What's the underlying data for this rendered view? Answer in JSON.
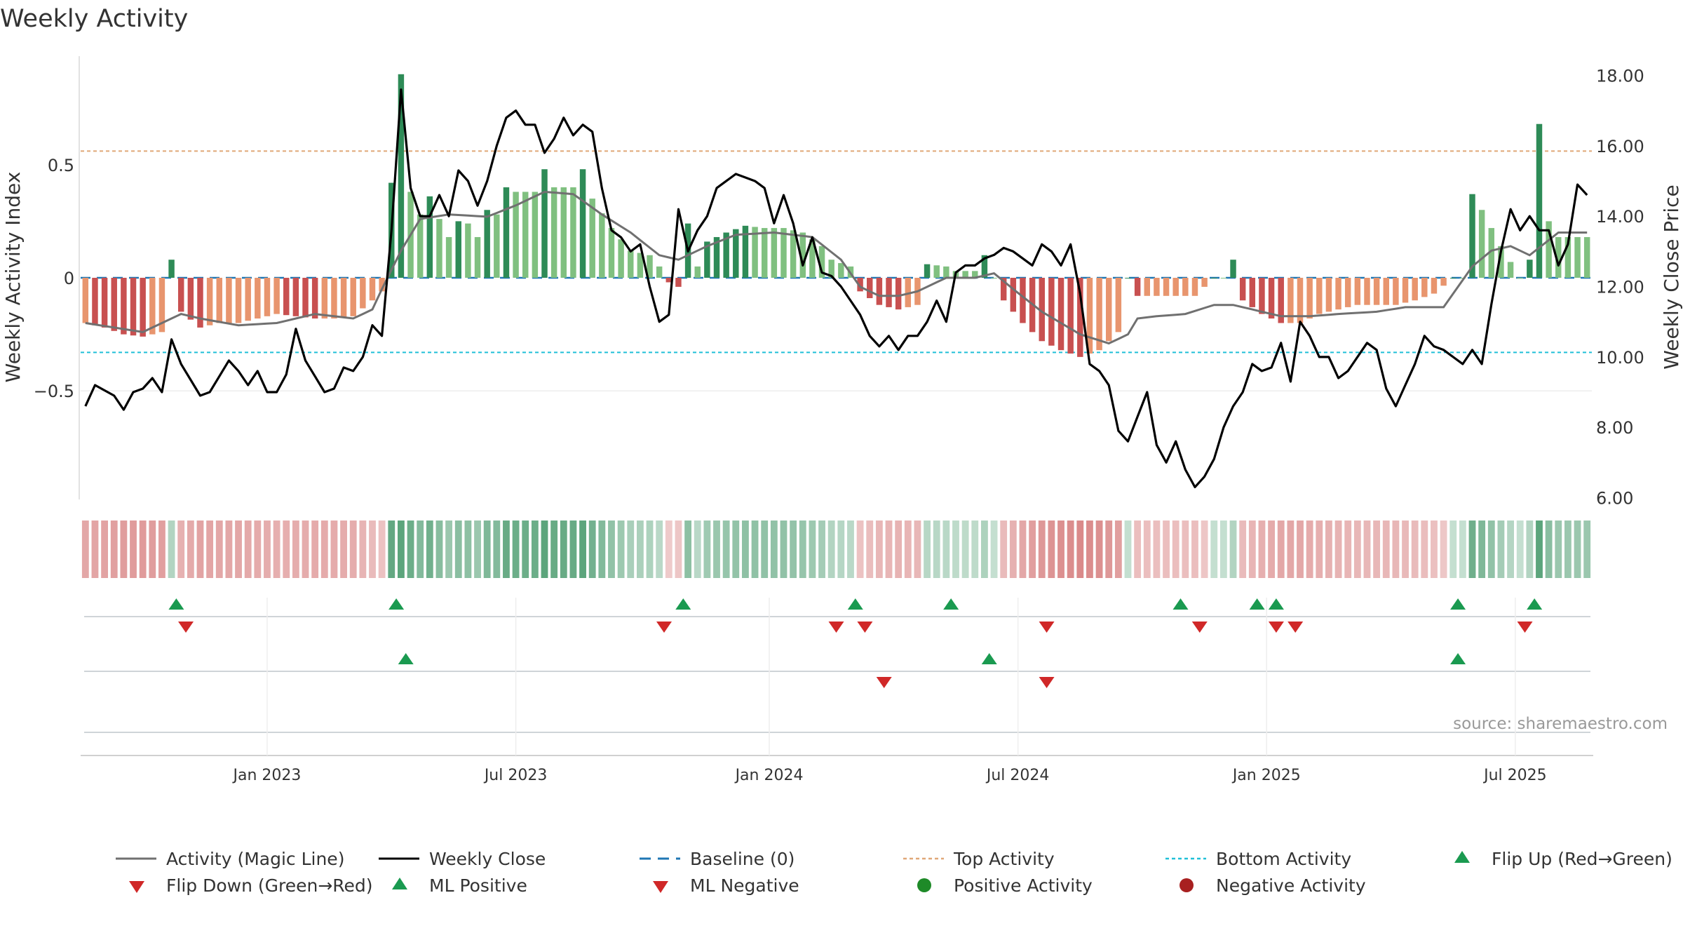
{
  "chart_data": {
    "type": "bar",
    "title": "Weekly Activity",
    "ylabel": "Weekly Activity Index",
    "y2label": "Weekly Close Price",
    "ylim": [
      -0.98,
      0.98
    ],
    "y2lim": [
      5.95,
      18.55
    ],
    "yticks": [
      {
        "value": 0.5,
        "label": "0.5"
      },
      {
        "value": 0,
        "label": "0"
      },
      {
        "value": -0.5,
        "label": "−0.5"
      }
    ],
    "y2ticks": [
      {
        "value": 18,
        "label": "18.00"
      },
      {
        "value": 16,
        "label": "16.00"
      },
      {
        "value": 14,
        "label": "14.00"
      },
      {
        "value": 12,
        "label": "12.00"
      },
      {
        "value": 10,
        "label": "10.00"
      },
      {
        "value": 8,
        "label": "8.00"
      },
      {
        "value": 6,
        "label": "6.00"
      }
    ],
    "xticks": [
      {
        "week": 19,
        "label": "Jan 2023"
      },
      {
        "week": 45,
        "label": "Jul 2023"
      },
      {
        "week": 71.5,
        "label": "Jan 2024"
      },
      {
        "week": 97.5,
        "label": "Jul 2024"
      },
      {
        "week": 123.5,
        "label": "Jan 2025"
      },
      {
        "week": 149.5,
        "label": "Jul 2025"
      }
    ],
    "top_activity": 0.56,
    "bottom_activity": -0.33,
    "source": "source: sharemaestro.com",
    "weeks": 158,
    "anchors": {
      "activity": [
        [
          0,
          -0.2
        ],
        [
          2,
          -0.22
        ],
        [
          4,
          -0.25
        ],
        [
          6,
          -0.26
        ],
        [
          8,
          -0.24
        ],
        [
          9,
          0.08
        ],
        [
          10,
          -0.15
        ],
        [
          12,
          -0.22
        ],
        [
          14,
          -0.2
        ],
        [
          16,
          -0.2
        ],
        [
          18,
          -0.18
        ],
        [
          20,
          -0.16
        ],
        [
          22,
          -0.17
        ],
        [
          24,
          -0.18
        ],
        [
          26,
          -0.18
        ],
        [
          28,
          -0.17
        ],
        [
          30,
          -0.1
        ],
        [
          31,
          -0.06
        ],
        [
          32,
          0.42
        ],
        [
          33,
          0.9
        ],
        [
          34,
          0.38
        ],
        [
          35,
          0.28
        ],
        [
          36,
          0.36
        ],
        [
          37,
          0.26
        ],
        [
          38,
          0.18
        ],
        [
          39,
          0.25
        ],
        [
          40,
          0.24
        ],
        [
          41,
          0.18
        ],
        [
          42,
          0.3
        ],
        [
          43,
          0.28
        ],
        [
          44,
          0.4
        ],
        [
          45,
          0.38
        ],
        [
          47,
          0.38
        ],
        [
          48,
          0.48
        ],
        [
          49,
          0.4
        ],
        [
          51,
          0.4
        ],
        [
          52,
          0.48
        ],
        [
          53,
          0.35
        ],
        [
          55,
          0.22
        ],
        [
          57,
          0.12
        ],
        [
          59,
          0.1
        ],
        [
          60,
          0.05
        ],
        [
          61,
          -0.02
        ],
        [
          62,
          -0.04
        ],
        [
          63,
          0.24
        ],
        [
          64,
          0.05
        ],
        [
          65,
          0.16
        ],
        [
          67,
          0.2
        ],
        [
          69,
          0.23
        ],
        [
          71,
          0.22
        ],
        [
          73,
          0.22
        ],
        [
          75,
          0.2
        ],
        [
          77,
          0.14
        ],
        [
          78,
          0.08
        ],
        [
          80,
          0.05
        ],
        [
          81,
          -0.06
        ],
        [
          83,
          -0.12
        ],
        [
          85,
          -0.14
        ],
        [
          87,
          -0.12
        ],
        [
          88,
          0.06
        ],
        [
          90,
          0.05
        ],
        [
          91,
          0.03
        ],
        [
          93,
          0.03
        ],
        [
          94,
          0.1
        ],
        [
          95,
          0.0
        ],
        [
          96,
          -0.1
        ],
        [
          98,
          -0.2
        ],
        [
          100,
          -0.28
        ],
        [
          102,
          -0.32
        ],
        [
          104,
          -0.35
        ],
        [
          106,
          -0.32
        ],
        [
          108,
          -0.24
        ],
        [
          109,
          0.0
        ],
        [
          110,
          -0.08
        ],
        [
          112,
          -0.08
        ],
        [
          114,
          -0.08
        ],
        [
          116,
          -0.08
        ],
        [
          118,
          0.0
        ],
        [
          119,
          0.0
        ],
        [
          120,
          0.08
        ],
        [
          121,
          -0.1
        ],
        [
          123,
          -0.16
        ],
        [
          125,
          -0.2
        ],
        [
          127,
          -0.2
        ],
        [
          129,
          -0.16
        ],
        [
          131,
          -0.14
        ],
        [
          133,
          -0.12
        ],
        [
          135,
          -0.12
        ],
        [
          137,
          -0.12
        ],
        [
          139,
          -0.1
        ],
        [
          141,
          -0.07
        ],
        [
          143,
          0.0
        ],
        [
          144,
          0.0
        ],
        [
          145,
          0.37
        ],
        [
          146,
          0.3
        ],
        [
          148,
          0.14
        ],
        [
          150,
          0.0
        ],
        [
          151,
          0.08
        ],
        [
          152,
          0.68
        ],
        [
          153,
          0.25
        ],
        [
          154,
          0.18
        ]
      ],
      "magic_line": [
        [
          0,
          -0.2
        ],
        [
          6,
          -0.24
        ],
        [
          8,
          -0.2
        ],
        [
          10,
          -0.16
        ],
        [
          12,
          -0.18
        ],
        [
          16,
          -0.21
        ],
        [
          20,
          -0.2
        ],
        [
          24,
          -0.16
        ],
        [
          28,
          -0.18
        ],
        [
          30,
          -0.14
        ],
        [
          31,
          -0.05
        ],
        [
          33,
          0.12
        ],
        [
          35,
          0.26
        ],
        [
          38,
          0.28
        ],
        [
          42,
          0.27
        ],
        [
          45,
          0.32
        ],
        [
          48,
          0.38
        ],
        [
          51,
          0.37
        ],
        [
          54,
          0.28
        ],
        [
          57,
          0.2
        ],
        [
          60,
          0.1
        ],
        [
          62,
          0.08
        ],
        [
          65,
          0.14
        ],
        [
          68,
          0.19
        ],
        [
          72,
          0.2
        ],
        [
          76,
          0.18
        ],
        [
          79,
          0.08
        ],
        [
          81,
          -0.04
        ],
        [
          83,
          -0.08
        ],
        [
          85,
          -0.08
        ],
        [
          87,
          -0.06
        ],
        [
          90,
          0.0
        ],
        [
          93,
          0.0
        ],
        [
          95,
          0.02
        ],
        [
          97,
          -0.05
        ],
        [
          100,
          -0.15
        ],
        [
          104,
          -0.25
        ],
        [
          107,
          -0.29
        ],
        [
          109,
          -0.25
        ],
        [
          110,
          -0.18
        ],
        [
          112,
          -0.17
        ],
        [
          115,
          -0.16
        ],
        [
          118,
          -0.12
        ],
        [
          120,
          -0.12
        ],
        [
          122,
          -0.14
        ],
        [
          125,
          -0.17
        ],
        [
          128,
          -0.17
        ],
        [
          131,
          -0.16
        ],
        [
          135,
          -0.15
        ],
        [
          138,
          -0.13
        ],
        [
          142,
          -0.13
        ],
        [
          145,
          0.05
        ],
        [
          147,
          0.12
        ],
        [
          149,
          0.14
        ],
        [
          151,
          0.1
        ],
        [
          154,
          0.2
        ]
      ],
      "close": [
        [
          0,
          8.6
        ],
        [
          1,
          9.2
        ],
        [
          3,
          8.9
        ],
        [
          4,
          8.5
        ],
        [
          5,
          9.0
        ],
        [
          6,
          9.1
        ],
        [
          7,
          9.4
        ],
        [
          8,
          9.0
        ],
        [
          9,
          10.5
        ],
        [
          10,
          9.8
        ],
        [
          12,
          8.9
        ],
        [
          13,
          9.0
        ],
        [
          15,
          9.9
        ],
        [
          16,
          9.6
        ],
        [
          17,
          9.2
        ],
        [
          18,
          9.6
        ],
        [
          19,
          9.0
        ],
        [
          20,
          9.0
        ],
        [
          21,
          9.5
        ],
        [
          22,
          10.8
        ],
        [
          23,
          9.9
        ],
        [
          25,
          9.0
        ],
        [
          26,
          9.1
        ],
        [
          27,
          9.7
        ],
        [
          28,
          9.6
        ],
        [
          29,
          10.0
        ],
        [
          30,
          10.9
        ],
        [
          31,
          10.6
        ],
        [
          32,
          13.6
        ],
        [
          33,
          17.6
        ],
        [
          34,
          14.8
        ],
        [
          35,
          14.0
        ],
        [
          36,
          14.0
        ],
        [
          37,
          14.6
        ],
        [
          38,
          14.0
        ],
        [
          39,
          15.3
        ],
        [
          40,
          15.0
        ],
        [
          41,
          14.3
        ],
        [
          42,
          15.0
        ],
        [
          43,
          16.0
        ],
        [
          44,
          16.8
        ],
        [
          45,
          17.0
        ],
        [
          46,
          16.6
        ],
        [
          47,
          16.6
        ],
        [
          48,
          15.8
        ],
        [
          49,
          16.2
        ],
        [
          50,
          16.8
        ],
        [
          51,
          16.3
        ],
        [
          52,
          16.6
        ],
        [
          53,
          16.4
        ],
        [
          54,
          14.8
        ],
        [
          55,
          13.6
        ],
        [
          56,
          13.4
        ],
        [
          57,
          13.0
        ],
        [
          58,
          13.2
        ],
        [
          59,
          12.0
        ],
        [
          60,
          11.0
        ],
        [
          61,
          11.2
        ],
        [
          62,
          14.2
        ],
        [
          63,
          13.0
        ],
        [
          64,
          13.6
        ],
        [
          65,
          14.0
        ],
        [
          66,
          14.8
        ],
        [
          67,
          15.0
        ],
        [
          68,
          15.2
        ],
        [
          69,
          15.1
        ],
        [
          70,
          15.0
        ],
        [
          71,
          14.8
        ],
        [
          72,
          13.8
        ],
        [
          73,
          14.6
        ],
        [
          74,
          13.8
        ],
        [
          75,
          12.6
        ],
        [
          76,
          13.4
        ],
        [
          77,
          12.4
        ],
        [
          78,
          12.3
        ],
        [
          79,
          12.0
        ],
        [
          80,
          11.6
        ],
        [
          81,
          11.2
        ],
        [
          82,
          10.6
        ],
        [
          83,
          10.3
        ],
        [
          84,
          10.6
        ],
        [
          85,
          10.2
        ],
        [
          86,
          10.6
        ],
        [
          87,
          10.6
        ],
        [
          88,
          11.0
        ],
        [
          89,
          11.6
        ],
        [
          90,
          11.0
        ],
        [
          91,
          12.4
        ],
        [
          92,
          12.6
        ],
        [
          93,
          12.6
        ],
        [
          94,
          12.8
        ],
        [
          95,
          12.9
        ],
        [
          96,
          13.1
        ],
        [
          97,
          13.0
        ],
        [
          98,
          12.8
        ],
        [
          99,
          12.6
        ],
        [
          100,
          13.2
        ],
        [
          101,
          13.0
        ],
        [
          102,
          12.6
        ],
        [
          103,
          13.2
        ],
        [
          104,
          11.8
        ],
        [
          105,
          9.8
        ],
        [
          106,
          9.6
        ],
        [
          107,
          9.2
        ],
        [
          108,
          7.9
        ],
        [
          109,
          7.6
        ],
        [
          110,
          8.3
        ],
        [
          111,
          9.0
        ],
        [
          112,
          7.5
        ],
        [
          113,
          7.0
        ],
        [
          114,
          7.6
        ],
        [
          115,
          6.8
        ],
        [
          116,
          6.3
        ],
        [
          117,
          6.6
        ],
        [
          118,
          7.1
        ],
        [
          119,
          8.0
        ],
        [
          120,
          8.6
        ],
        [
          121,
          9.0
        ],
        [
          122,
          9.8
        ],
        [
          123,
          9.6
        ],
        [
          124,
          9.7
        ],
        [
          125,
          10.4
        ],
        [
          126,
          9.3
        ],
        [
          127,
          11.0
        ],
        [
          128,
          10.6
        ],
        [
          129,
          10.0
        ],
        [
          130,
          10.0
        ],
        [
          131,
          9.4
        ],
        [
          132,
          9.6
        ],
        [
          133,
          10.0
        ],
        [
          134,
          10.4
        ],
        [
          135,
          10.2
        ],
        [
          136,
          9.1
        ],
        [
          137,
          8.6
        ],
        [
          138,
          9.2
        ],
        [
          139,
          9.8
        ],
        [
          140,
          10.6
        ],
        [
          141,
          10.3
        ],
        [
          142,
          10.2
        ],
        [
          143,
          10.0
        ],
        [
          144,
          9.8
        ],
        [
          145,
          10.2
        ],
        [
          146,
          9.8
        ],
        [
          147,
          11.5
        ],
        [
          148,
          13.0
        ],
        [
          149,
          14.2
        ],
        [
          150,
          13.6
        ],
        [
          151,
          14.0
        ],
        [
          152,
          13.6
        ],
        [
          153,
          13.6
        ],
        [
          154,
          12.6
        ],
        [
          155,
          13.2
        ],
        [
          156,
          14.9
        ],
        [
          157,
          14.6
        ]
      ]
    },
    "colors": {
      "pos_dark": "#2e8b57",
      "pos_light": "#80c080",
      "neg_dark": "#c85050",
      "neg_light": "#e8956e",
      "magic_line": "#707070",
      "close": "#000000",
      "baseline": "#1f77b4",
      "top": "#e0a878",
      "bottom": "#20c0d8",
      "flip_up": "#1a9a50",
      "flip_down": "#d02828"
    },
    "signals": {
      "row1_up": [
        9.5,
        32.5,
        62.5,
        80.5,
        90.5,
        114.5,
        122.5,
        124.5,
        143.5,
        151.5
      ],
      "row1_down": [
        10.5,
        60.5,
        78.5,
        81.5,
        100.5,
        116.5,
        124.5,
        126.5,
        150.5
      ],
      "row2_up": [
        33.5,
        94.5,
        143.5
      ],
      "row2_down": [
        83.5,
        100.5
      ]
    },
    "legend": [
      {
        "key": "magic",
        "label": "Activity (Magic Line)"
      },
      {
        "key": "close",
        "label": "Weekly Close"
      },
      {
        "key": "baseline",
        "label": "Baseline (0)"
      },
      {
        "key": "top",
        "label": "Top Activity"
      },
      {
        "key": "bottom",
        "label": "Bottom Activity"
      },
      {
        "key": "flip_up",
        "label": "Flip Up (Red→Green)"
      },
      {
        "key": "flip_down",
        "label": "Flip Down (Green→Red)"
      },
      {
        "key": "ml_pos",
        "label": "ML Positive"
      },
      {
        "key": "ml_neg",
        "label": "ML Negative"
      },
      {
        "key": "pos_act",
        "label": "Positive Activity"
      },
      {
        "key": "neg_act",
        "label": "Negative Activity"
      }
    ]
  }
}
